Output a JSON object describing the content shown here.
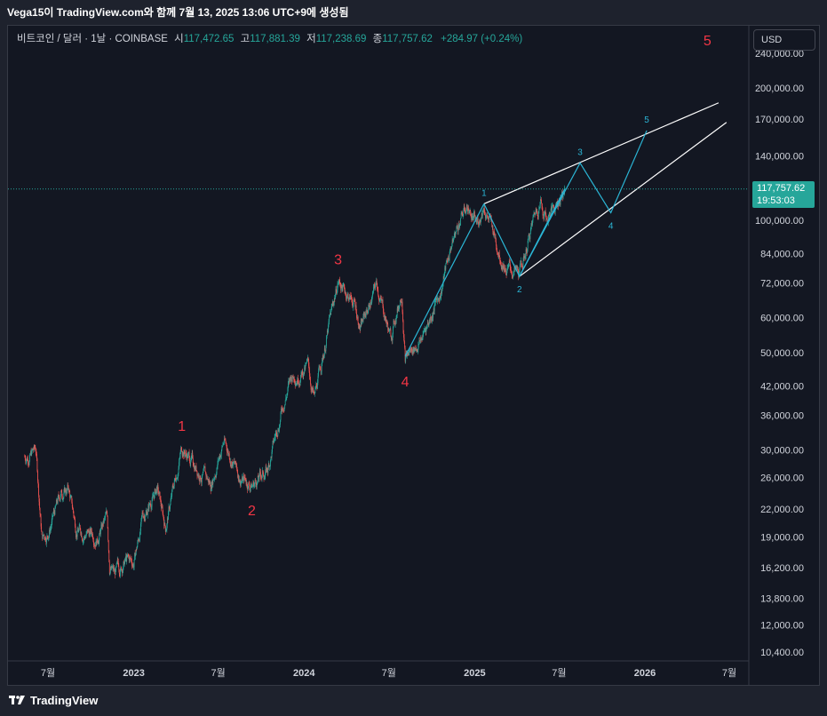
{
  "header": {
    "title": "Vega15이 TradingView.com와 함께 7월 13, 2025 13:06 UTC+9에 생성됨"
  },
  "legend": {
    "symbol": "비트코인 / 달러 · 1날 · COINBASE",
    "open_label": "시",
    "open": "117,472.65",
    "high_label": "고",
    "high": "117,881.39",
    "low_label": "저",
    "low": "117,238.69",
    "close_label": "종",
    "close": "117,757.62",
    "change": "+284.97 (+0.24%)"
  },
  "currency": "USD",
  "price_tag": {
    "price": "117,757.62",
    "countdown": "19:53:03"
  },
  "footer": {
    "brand": "TradingView"
  },
  "colors": {
    "up": "#26a69a",
    "down": "#ef5350",
    "wave_red": "#f23645",
    "wave_blue": "#2bb6d6",
    "channel": "#ffffff",
    "background": "#131722"
  },
  "chart_data": {
    "type": "candlestick",
    "scale": "log",
    "symbol": "BTC/USD",
    "interval": "1D",
    "exchange": "COINBASE",
    "y_ticks": [
      "240,000.00",
      "200,000.00",
      "170,000.00",
      "140,000.00",
      "100,000.00",
      "84,000.00",
      "72,000.00",
      "60,000.00",
      "50,000.00",
      "42,000.00",
      "36,000.00",
      "30,000.00",
      "26,000.00",
      "22,000.00",
      "19,000.00",
      "16,200.00",
      "13,800.00",
      "12,000.00",
      "10,400.00"
    ],
    "x_ticks": [
      "7월",
      "2023",
      "7월",
      "2024",
      "7월",
      "2025",
      "7월",
      "2026",
      "7월"
    ],
    "x_tick_dates": [
      "2022-07-01",
      "2023-01-01",
      "2023-07-01",
      "2024-01-01",
      "2024-07-01",
      "2025-01-01",
      "2025-07-01",
      "2026-01-01",
      "2026-07-01"
    ],
    "current_price": 117757.62,
    "price_path": [
      [
        "2022-05-12",
        29000
      ],
      [
        "2022-05-25",
        29500
      ],
      [
        "2022-06-05",
        30000
      ],
      [
        "2022-06-18",
        19000
      ],
      [
        "2022-07-01",
        19500
      ],
      [
        "2022-07-30",
        24000
      ],
      [
        "2022-08-14",
        24500
      ],
      [
        "2022-08-30",
        20000
      ],
      [
        "2022-09-15",
        19500
      ],
      [
        "2022-10-15",
        19200
      ],
      [
        "2022-11-05",
        21000
      ],
      [
        "2022-11-10",
        16500
      ],
      [
        "2022-11-21",
        15600
      ],
      [
        "2022-12-15",
        16800
      ],
      [
        "2023-01-01",
        16600
      ],
      [
        "2023-01-20",
        21000
      ],
      [
        "2023-02-20",
        24500
      ],
      [
        "2023-03-10",
        20000
      ],
      [
        "2023-04-14",
        30500
      ],
      [
        "2023-05-20",
        27000
      ],
      [
        "2023-06-15",
        25000
      ],
      [
        "2023-07-13",
        31500
      ],
      [
        "2023-08-17",
        26000
      ],
      [
        "2023-09-11",
        25000
      ],
      [
        "2023-10-15",
        27000
      ],
      [
        "2023-11-15",
        37500
      ],
      [
        "2023-12-05",
        44000
      ],
      [
        "2024-01-10",
        46500
      ],
      [
        "2024-01-23",
        39000
      ],
      [
        "2024-02-15",
        52000
      ],
      [
        "2024-03-14",
        73000
      ],
      [
        "2024-04-20",
        64000
      ],
      [
        "2024-05-01",
        57000
      ],
      [
        "2024-06-05",
        71500
      ],
      [
        "2024-07-05",
        54000
      ],
      [
        "2024-07-29",
        69500
      ],
      [
        "2024-08-05",
        49000
      ],
      [
        "2024-09-06",
        53000
      ],
      [
        "2024-10-20",
        69000
      ],
      [
        "2024-11-12",
        88000
      ],
      [
        "2024-12-05",
        103000
      ],
      [
        "2024-12-17",
        108000
      ],
      [
        "2025-01-05",
        97000
      ],
      [
        "2025-01-21",
        109000
      ],
      [
        "2025-02-25",
        84000
      ],
      [
        "2025-03-10",
        78000
      ],
      [
        "2025-04-07",
        74500
      ],
      [
        "2025-05-10",
        103000
      ],
      [
        "2025-05-22",
        111000
      ],
      [
        "2025-06-05",
        101000
      ],
      [
        "2025-07-13",
        117757
      ]
    ],
    "wave_labels_primary": [
      {
        "label": "1",
        "date": "2023-04-14",
        "price": 30500
      },
      {
        "label": "2",
        "date": "2023-09-11",
        "price": 25000
      },
      {
        "label": "3",
        "date": "2024-03-14",
        "price": 73000
      },
      {
        "label": "4",
        "date": "2024-08-05",
        "price": 49000
      },
      {
        "label": "5",
        "date": "2026-05-15",
        "price": 230000
      }
    ],
    "wave_path_primary_4_to_1": [
      [
        "2024-08-05",
        49000
      ],
      [
        "2025-01-21",
        109000
      ]
    ],
    "wave_labels_secondary": [
      {
        "label": "1",
        "date": "2025-01-21",
        "price": 109000
      },
      {
        "label": "2",
        "date": "2025-04-07",
        "price": 74500
      },
      {
        "label": "3",
        "date": "2025-08-15",
        "price": 135000
      },
      {
        "label": "4",
        "date": "2025-10-20",
        "price": 104000
      },
      {
        "label": "5",
        "date": "2026-01-05",
        "price": 160000
      }
    ],
    "wave_path_secondary": [
      [
        "2025-01-21",
        109000
      ],
      [
        "2025-04-07",
        74500
      ],
      [
        "2025-08-15",
        135000
      ],
      [
        "2025-10-20",
        104000
      ],
      [
        "2026-01-05",
        160000
      ]
    ],
    "wave_path_secondary_extra": [
      [
        "2025-04-07",
        74500
      ],
      [
        "2025-07-13",
        117757
      ]
    ],
    "channel_upper": [
      [
        "2025-01-21",
        109000
      ],
      [
        "2026-06-08",
        185000
      ]
    ],
    "channel_lower": [
      [
        "2025-04-07",
        74500
      ],
      [
        "2026-06-25",
        167000
      ]
    ]
  }
}
